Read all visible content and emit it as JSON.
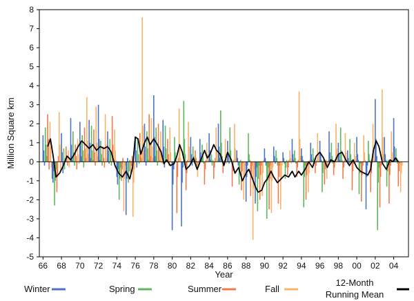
{
  "chart_data": {
    "type": "bar",
    "xlabel": "Year",
    "ylabel": "Million Square km",
    "ylim": [
      -5,
      8
    ],
    "xlim": [
      1965.6,
      2005.6
    ],
    "y_ticks": [
      8,
      7,
      6,
      5,
      4,
      3,
      2,
      1,
      0,
      -1,
      -2,
      -3,
      -4,
      -5
    ],
    "x_ticks": [
      {
        "label": "66",
        "year": 1966
      },
      {
        "label": "68",
        "year": 1968
      },
      {
        "label": "70",
        "year": 1970
      },
      {
        "label": "72",
        "year": 1972
      },
      {
        "label": "74",
        "year": 1974
      },
      {
        "label": "76",
        "year": 1976
      },
      {
        "label": "78",
        "year": 1978
      },
      {
        "label": "80",
        "year": 1980
      },
      {
        "label": "82",
        "year": 1982
      },
      {
        "label": "84",
        "year": 1984
      },
      {
        "label": "86",
        "year": 1986
      },
      {
        "label": "88",
        "year": 1988
      },
      {
        "label": "90",
        "year": 1990
      },
      {
        "label": "92",
        "year": 1992
      },
      {
        "label": "94",
        "year": 1994
      },
      {
        "label": "96",
        "year": 1996
      },
      {
        "label": "98",
        "year": 1998
      },
      {
        "label": "00",
        "year": 2000
      },
      {
        "label": "02",
        "year": 2002
      },
      {
        "label": "04",
        "year": 2004
      }
    ],
    "grid": false,
    "legend_position": "bottom",
    "series": [
      {
        "name": "Winter",
        "color": "#4a73c6",
        "month_offsets": [
          0.0,
          0.08,
          0.16
        ]
      },
      {
        "name": "Spring",
        "color": "#5cb85c",
        "month_offsets": [
          0.25,
          0.33,
          0.41
        ]
      },
      {
        "name": "Summer",
        "color": "#ef7b4a",
        "month_offsets": [
          0.5,
          0.58,
          0.66
        ]
      },
      {
        "name": "Fall",
        "color": "#f8b26a",
        "month_offsets": [
          0.75,
          0.83,
          0.91
        ]
      }
    ],
    "years": [
      1966,
      1967,
      1968,
      1969,
      1970,
      1971,
      1972,
      1973,
      1974,
      1975,
      1976,
      1977,
      1978,
      1979,
      1980,
      1981,
      1982,
      1983,
      1984,
      1985,
      1986,
      1987,
      1988,
      1989,
      1990,
      1991,
      1992,
      1993,
      1994,
      1995,
      1996,
      1997,
      1998,
      1999,
      2000,
      2001,
      2002,
      2003,
      2004
    ],
    "monthly_values": [
      [
        1.4,
        0.6,
        -0.2,
        1.8,
        0.9,
        0.3,
        2.5,
        1.2,
        -0.4,
        2.1,
        0.8,
        -0.3
      ],
      [
        -0.9,
        -1.1,
        -0.5,
        -2.3,
        -1.0,
        -0.4,
        -1.6,
        -0.8,
        0.3,
        2.6,
        0.9,
        -0.5
      ],
      [
        1.5,
        0.5,
        -0.6,
        0.7,
        -0.4,
        0.2,
        0.8,
        0.3,
        -0.2,
        0.6,
        -0.3,
        0.2
      ],
      [
        2.3,
        0.9,
        0.1,
        1.6,
        0.5,
        -0.2,
        0.9,
        0.3,
        -0.4,
        1.2,
        0.4,
        -0.1
      ],
      [
        2.1,
        1.1,
        0.3,
        1.4,
        0.6,
        -0.3,
        1.8,
        0.7,
        0.2,
        3.4,
        1.1,
        0.4
      ],
      [
        2.2,
        1.0,
        0.2,
        1.9,
        0.6,
        0.1,
        1.7,
        0.5,
        -0.2,
        2.9,
        1.0,
        0.3
      ],
      [
        3.0,
        1.2,
        0.1,
        1.1,
        0.4,
        -0.2,
        0.8,
        0.2,
        -0.3,
        2.5,
        0.9,
        0.2
      ],
      [
        1.6,
        0.6,
        -0.1,
        1.2,
        0.5,
        -0.2,
        2.4,
        0.9,
        0.1,
        1.7,
        0.6,
        0.1
      ],
      [
        -0.8,
        -1.2,
        -0.4,
        -2.0,
        -0.9,
        -0.3,
        -1.0,
        -0.4,
        0.2,
        -2.6,
        -0.9,
        -0.2
      ],
      [
        -2.8,
        -0.9,
        0.2,
        -1.1,
        -0.5,
        0.1,
        -0.6,
        -0.2,
        0.3,
        -2.9,
        -1.1,
        -0.4
      ],
      [
        1.3,
        0.6,
        -0.3,
        1.2,
        0.4,
        -0.1,
        1.5,
        0.6,
        0.2,
        7.6,
        1.9,
        0.6
      ],
      [
        2.0,
        0.8,
        -0.2,
        1.6,
        0.7,
        0.1,
        2.5,
        1.0,
        0.3,
        2.3,
        0.8,
        0.2
      ],
      [
        3.5,
        1.3,
        0.3,
        1.8,
        0.6,
        -0.2,
        2.0,
        0.8,
        0.1,
        1.6,
        0.6,
        -0.1
      ],
      [
        2.2,
        0.8,
        -0.3,
        1.9,
        0.7,
        0.1,
        1.2,
        0.4,
        -0.2,
        1.8,
        0.5,
        -0.1
      ],
      [
        -3.6,
        -1.2,
        -0.4,
        1.3,
        0.5,
        0.1,
        -2.7,
        -0.8,
        0.2,
        2.8,
        0.9,
        0.2
      ],
      [
        -3.4,
        -1.1,
        -0.3,
        3.2,
        1.2,
        0.4,
        -1.5,
        -0.6,
        0.1,
        2.1,
        0.8,
        0.1
      ],
      [
        1.3,
        0.4,
        -0.2,
        0.8,
        0.3,
        -0.1,
        0.6,
        0.2,
        -0.2,
        -0.8,
        -0.3,
        0.1
      ],
      [
        1.2,
        0.5,
        0.1,
        0.9,
        0.3,
        -0.1,
        -1.2,
        -0.4,
        0.1,
        1.0,
        0.4,
        0.1
      ],
      [
        1.5,
        0.6,
        0.1,
        0.4,
        -0.2,
        0.1,
        -0.9,
        -0.3,
        0.2,
        1.8,
        0.6,
        0.1
      ],
      [
        2.0,
        0.8,
        0.2,
        2.7,
        1.0,
        0.3,
        -0.6,
        -0.2,
        0.1,
        1.2,
        0.4,
        -0.1
      ],
      [
        1.1,
        0.4,
        -0.1,
        1.8,
        0.6,
        0.1,
        -1.3,
        -0.5,
        0.1,
        2.0,
        0.7,
        0.2
      ],
      [
        0.6,
        0.2,
        -0.2,
        -1.2,
        -0.4,
        0.1,
        -1.5,
        -0.5,
        -0.1,
        -2.0,
        -0.7,
        -0.2
      ],
      [
        -2.1,
        -0.8,
        -0.2,
        1.5,
        0.4,
        0.1,
        -1.8,
        -0.7,
        -0.2,
        -4.1,
        -1.4,
        -0.4
      ],
      [
        -2.2,
        -0.8,
        -0.3,
        -2.6,
        -0.9,
        -0.2,
        -2.0,
        -0.7,
        -0.2,
        -1.8,
        -0.6,
        0.1
      ],
      [
        0.7,
        0.2,
        -0.2,
        -3.0,
        -1.0,
        -0.3,
        -2.5,
        -0.9,
        -0.2,
        -2.7,
        -1.0,
        -0.3
      ],
      [
        0.8,
        0.3,
        -0.1,
        0.6,
        0.2,
        -0.2,
        -2.2,
        -0.8,
        -0.2,
        -2.5,
        -0.9,
        -0.2
      ],
      [
        0.5,
        0.2,
        -0.1,
        -0.9,
        -0.3,
        0.1,
        -0.7,
        -0.3,
        0.1,
        0.6,
        0.2,
        -0.1
      ],
      [
        1.2,
        0.4,
        0.1,
        0.6,
        0.2,
        -0.1,
        -0.8,
        -0.3,
        0.1,
        3.7,
        1.2,
        0.3
      ],
      [
        0.7,
        0.3,
        0.1,
        -2.4,
        -0.8,
        -0.2,
        -2.0,
        -0.7,
        -0.2,
        -1.6,
        -0.6,
        0.1
      ],
      [
        1.0,
        0.4,
        0.1,
        0.7,
        0.2,
        -0.1,
        -0.6,
        -0.2,
        0.1,
        1.5,
        0.5,
        0.1
      ],
      [
        1.1,
        0.4,
        0.1,
        -1.6,
        -0.6,
        0.1,
        -1.2,
        -0.4,
        0.1,
        -0.9,
        -0.3,
        0.1
      ],
      [
        1.6,
        0.5,
        0.1,
        1.0,
        0.3,
        -0.1,
        -0.7,
        -0.3,
        0.1,
        2.0,
        0.7,
        0.2
      ],
      [
        1.0,
        0.4,
        0.1,
        1.8,
        0.6,
        0.1,
        -0.9,
        -0.3,
        0.1,
        1.5,
        0.5,
        0.1
      ],
      [
        0.6,
        0.2,
        -0.1,
        1.2,
        0.4,
        0.1,
        -1.5,
        -0.5,
        -0.1,
        1.0,
        0.3,
        0.1
      ],
      [
        1.3,
        0.4,
        0.1,
        -1.7,
        -0.6,
        -0.1,
        -2.1,
        -0.7,
        -0.2,
        1.4,
        0.5,
        0.1
      ],
      [
        -2.5,
        -0.8,
        -0.2,
        1.1,
        0.4,
        0.1,
        -1.6,
        -0.6,
        0.1,
        2.0,
        0.6,
        0.1
      ],
      [
        3.3,
        1.2,
        0.3,
        -3.6,
        -1.1,
        -0.3,
        -2.4,
        -0.8,
        -0.2,
        3.8,
        1.3,
        0.4
      ],
      [
        1.3,
        0.4,
        0.1,
        -1.3,
        -0.5,
        0.1,
        -2.2,
        -0.7,
        -0.2,
        1.6,
        0.5,
        0.1
      ],
      [
        2.3,
        0.8,
        0.2,
        0.7,
        0.2,
        -0.1,
        -1.3,
        -0.5,
        -0.1,
        -1.6,
        -0.6,
        -0.2
      ]
    ],
    "running_mean": {
      "name": "12-Month Running Mean",
      "color": "#000000",
      "points": [
        [
          1966.5,
          0.8
        ],
        [
          1966.8,
          1.2
        ],
        [
          1967.1,
          0.3
        ],
        [
          1967.4,
          -0.8
        ],
        [
          1967.8,
          -0.6
        ],
        [
          1968.2,
          -0.2
        ],
        [
          1968.6,
          0.3
        ],
        [
          1969.0,
          0.1
        ],
        [
          1969.4,
          0.4
        ],
        [
          1969.8,
          0.8
        ],
        [
          1970.2,
          1.1
        ],
        [
          1970.6,
          0.9
        ],
        [
          1971.0,
          0.7
        ],
        [
          1971.4,
          0.9
        ],
        [
          1971.8,
          0.6
        ],
        [
          1972.2,
          0.8
        ],
        [
          1972.6,
          0.7
        ],
        [
          1973.0,
          0.8
        ],
        [
          1973.4,
          0.5
        ],
        [
          1973.8,
          -0.2
        ],
        [
          1974.2,
          -0.6
        ],
        [
          1974.6,
          -0.8
        ],
        [
          1975.0,
          -0.5
        ],
        [
          1975.4,
          -0.9
        ],
        [
          1975.7,
          -0.3
        ],
        [
          1976.0,
          1.3
        ],
        [
          1976.3,
          1.2
        ],
        [
          1976.6,
          0.4
        ],
        [
          1977.0,
          1.0
        ],
        [
          1977.3,
          1.3
        ],
        [
          1977.6,
          0.9
        ],
        [
          1978.0,
          1.2
        ],
        [
          1978.4,
          0.9
        ],
        [
          1978.8,
          0.5
        ],
        [
          1979.1,
          -0.1
        ],
        [
          1979.4,
          0.1
        ],
        [
          1979.8,
          -0.2
        ],
        [
          1980.2,
          -0.1
        ],
        [
          1980.5,
          0.3
        ],
        [
          1980.8,
          0.9
        ],
        [
          1981.1,
          0.5
        ],
        [
          1981.5,
          -0.4
        ],
        [
          1981.9,
          -0.2
        ],
        [
          1982.3,
          0.2
        ],
        [
          1982.7,
          -0.4
        ],
        [
          1983.1,
          0.1
        ],
        [
          1983.5,
          0.6
        ],
        [
          1983.8,
          0.2
        ],
        [
          1984.1,
          0.4
        ],
        [
          1984.5,
          0.9
        ],
        [
          1984.8,
          0.6
        ],
        [
          1985.2,
          0.4
        ],
        [
          1985.6,
          -0.2
        ],
        [
          1986.0,
          0.5
        ],
        [
          1986.4,
          0.1
        ],
        [
          1986.8,
          -0.6
        ],
        [
          1987.2,
          -0.3
        ],
        [
          1987.6,
          -1.0
        ],
        [
          1988.0,
          -0.6
        ],
        [
          1988.3,
          -0.4
        ],
        [
          1988.7,
          -0.9
        ],
        [
          1989.0,
          -1.3
        ],
        [
          1989.3,
          -1.6
        ],
        [
          1989.7,
          -1.5
        ],
        [
          1990.0,
          -1.1
        ],
        [
          1990.3,
          -0.9
        ],
        [
          1990.7,
          -0.5
        ],
        [
          1991.0,
          -0.8
        ],
        [
          1991.4,
          -1.1
        ],
        [
          1991.8,
          -0.9
        ],
        [
          1992.2,
          -0.7
        ],
        [
          1992.6,
          -0.8
        ],
        [
          1993.0,
          -0.5
        ],
        [
          1993.3,
          -0.8
        ],
        [
          1993.7,
          -0.5
        ],
        [
          1994.0,
          -0.7
        ],
        [
          1994.4,
          -0.4
        ],
        [
          1994.8,
          0.0
        ],
        [
          1995.2,
          -0.3
        ],
        [
          1995.6,
          0.3
        ],
        [
          1996.0,
          0.5
        ],
        [
          1996.4,
          0.2
        ],
        [
          1996.8,
          -0.3
        ],
        [
          1997.2,
          0.1
        ],
        [
          1997.6,
          0.0
        ],
        [
          1998.0,
          0.4
        ],
        [
          1998.4,
          0.5
        ],
        [
          1998.8,
          0.1
        ],
        [
          1999.2,
          -0.2
        ],
        [
          1999.6,
          0.1
        ],
        [
          2000.0,
          -0.3
        ],
        [
          2000.4,
          -0.5
        ],
        [
          2000.8,
          -0.6
        ],
        [
          2001.2,
          -0.7
        ],
        [
          2001.5,
          -0.4
        ],
        [
          2001.8,
          0.6
        ],
        [
          2002.1,
          1.1
        ],
        [
          2002.4,
          0.8
        ],
        [
          2002.8,
          -0.1
        ],
        [
          2003.2,
          -0.4
        ],
        [
          2003.6,
          0.1
        ],
        [
          2003.9,
          0.0
        ],
        [
          2004.2,
          0.2
        ],
        [
          2004.5,
          0.0
        ]
      ]
    }
  }
}
